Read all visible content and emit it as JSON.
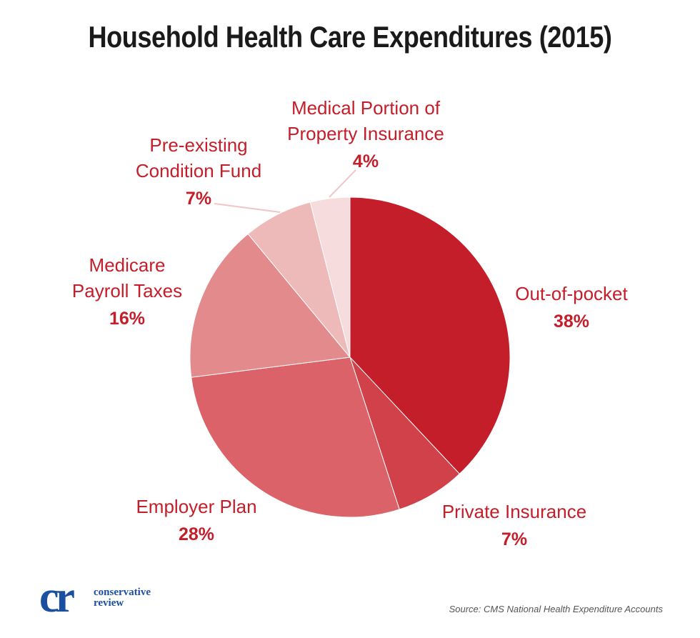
{
  "chart_data": {
    "type": "pie",
    "title": "Household Health Care Expenditures (2015)",
    "slices": [
      {
        "label": "Out-of-pocket",
        "value": 38,
        "pct_label": "38%",
        "color": "#c41e2a"
      },
      {
        "label": "Private Insurance",
        "value": 7,
        "pct_label": "7%",
        "color": "#d1414a"
      },
      {
        "label": "Employer Plan",
        "value": 28,
        "pct_label": "28%",
        "color": "#db6268"
      },
      {
        "label": "Medicare Payroll Taxes",
        "value": 16,
        "pct_label": "16%",
        "color": "#e38a8c"
      },
      {
        "label": "Pre-existing Condition Fund",
        "value": 7,
        "pct_label": "7%",
        "color": "#edb9b9"
      },
      {
        "label": "Medical Portion of Property Insurance",
        "value": 4,
        "pct_label": "4%",
        "color": "#f6dcdc"
      }
    ],
    "label_lines": [
      [
        "Out-of-pocket"
      ],
      [
        "Private Insurance"
      ],
      [
        "Employer Plan"
      ],
      [
        "Medicare",
        "Payroll Taxes"
      ],
      [
        "Pre-existing",
        "Condition Fund"
      ],
      [
        "Medical Portion of",
        "Property Insurance"
      ]
    ]
  },
  "branding": {
    "logo_mark": "cr",
    "logo_line1": "conservative",
    "logo_line2": "review"
  },
  "source": "Source: CMS National Health Expenditure Accounts"
}
